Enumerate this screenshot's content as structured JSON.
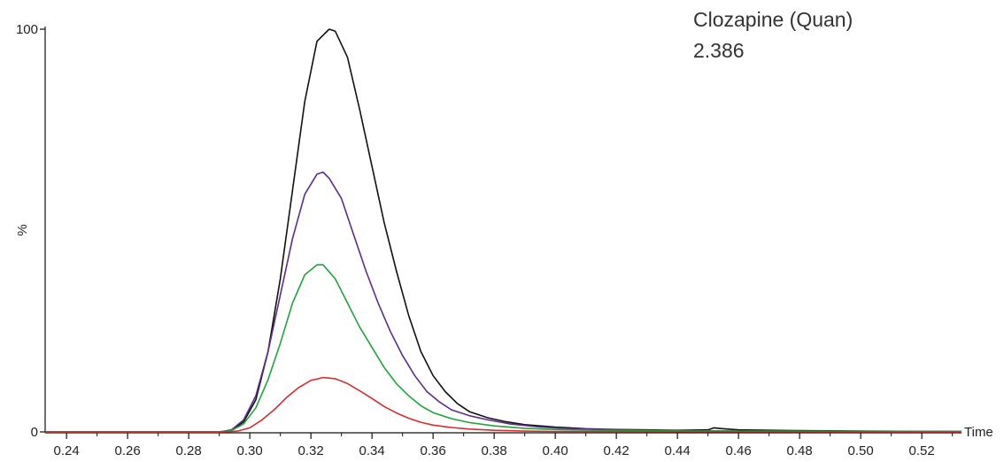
{
  "chart_data": {
    "type": "line",
    "title": "Clozapine (Quan)",
    "subtitle": "2.386",
    "xlabel": "Time",
    "ylabel": "%",
    "xlim": [
      0.233,
      0.533
    ],
    "ylim": [
      0,
      100
    ],
    "x_ticks": [
      "0.24",
      "0.26",
      "0.28",
      "0.30",
      "0.32",
      "0.34",
      "0.36",
      "0.38",
      "0.40",
      "0.42",
      "0.44",
      "0.46",
      "0.48",
      "0.50",
      "0.52"
    ],
    "y_ticks": [
      "0",
      "100"
    ],
    "grid": false,
    "series": [
      {
        "color": "#111111",
        "points": [
          [
            0.233,
            0
          ],
          [
            0.29,
            0
          ],
          [
            0.294,
            0.4
          ],
          [
            0.298,
            2.5
          ],
          [
            0.302,
            8
          ],
          [
            0.306,
            20
          ],
          [
            0.31,
            38
          ],
          [
            0.314,
            60
          ],
          [
            0.318,
            82
          ],
          [
            0.322,
            97
          ],
          [
            0.326,
            100
          ],
          [
            0.328,
            99.5
          ],
          [
            0.332,
            93
          ],
          [
            0.336,
            80
          ],
          [
            0.34,
            66
          ],
          [
            0.344,
            52
          ],
          [
            0.348,
            40
          ],
          [
            0.352,
            29
          ],
          [
            0.356,
            20
          ],
          [
            0.36,
            14
          ],
          [
            0.364,
            10
          ],
          [
            0.368,
            7
          ],
          [
            0.372,
            5
          ],
          [
            0.378,
            3.5
          ],
          [
            0.384,
            2.5
          ],
          [
            0.39,
            1.8
          ],
          [
            0.4,
            1.2
          ],
          [
            0.41,
            0.8
          ],
          [
            0.42,
            0.6
          ],
          [
            0.43,
            0.5
          ],
          [
            0.44,
            0.4
          ],
          [
            0.45,
            0.5
          ],
          [
            0.452,
            1
          ],
          [
            0.455,
            0.8
          ],
          [
            0.46,
            0.5
          ],
          [
            0.48,
            0.3
          ],
          [
            0.5,
            0.2
          ],
          [
            0.533,
            0.1
          ]
        ]
      },
      {
        "color": "#5b2d8e",
        "points": [
          [
            0.233,
            0
          ],
          [
            0.29,
            0
          ],
          [
            0.294,
            0.5
          ],
          [
            0.298,
            3
          ],
          [
            0.302,
            9
          ],
          [
            0.306,
            20
          ],
          [
            0.31,
            34
          ],
          [
            0.314,
            48
          ],
          [
            0.318,
            59
          ],
          [
            0.322,
            64
          ],
          [
            0.324,
            64.5
          ],
          [
            0.326,
            63
          ],
          [
            0.33,
            58
          ],
          [
            0.334,
            49
          ],
          [
            0.338,
            40
          ],
          [
            0.342,
            32
          ],
          [
            0.346,
            25
          ],
          [
            0.35,
            19
          ],
          [
            0.354,
            14
          ],
          [
            0.358,
            10
          ],
          [
            0.362,
            7.5
          ],
          [
            0.366,
            5.5
          ],
          [
            0.372,
            4
          ],
          [
            0.378,
            3
          ],
          [
            0.385,
            2
          ],
          [
            0.395,
            1.2
          ],
          [
            0.405,
            0.8
          ],
          [
            0.42,
            0.5
          ],
          [
            0.44,
            0.3
          ],
          [
            0.46,
            0.2
          ],
          [
            0.533,
            0.1
          ]
        ]
      },
      {
        "color": "#21a339",
        "points": [
          [
            0.233,
            0
          ],
          [
            0.29,
            0
          ],
          [
            0.294,
            0.3
          ],
          [
            0.298,
            2
          ],
          [
            0.302,
            6
          ],
          [
            0.306,
            13
          ],
          [
            0.31,
            22
          ],
          [
            0.314,
            32
          ],
          [
            0.318,
            39
          ],
          [
            0.322,
            41.5
          ],
          [
            0.324,
            41.5
          ],
          [
            0.328,
            38
          ],
          [
            0.332,
            32
          ],
          [
            0.336,
            26
          ],
          [
            0.34,
            21
          ],
          [
            0.344,
            16
          ],
          [
            0.348,
            12
          ],
          [
            0.352,
            9
          ],
          [
            0.356,
            6.5
          ],
          [
            0.36,
            4.8
          ],
          [
            0.366,
            3.3
          ],
          [
            0.372,
            2.3
          ],
          [
            0.38,
            1.5
          ],
          [
            0.39,
            0.9
          ],
          [
            0.4,
            0.6
          ],
          [
            0.42,
            0.3
          ],
          [
            0.45,
            0.2
          ],
          [
            0.533,
            0.1
          ]
        ]
      },
      {
        "color": "#d62d2d",
        "points": [
          [
            0.233,
            0
          ],
          [
            0.292,
            0
          ],
          [
            0.296,
            0.2
          ],
          [
            0.3,
            1
          ],
          [
            0.304,
            3
          ],
          [
            0.308,
            5.5
          ],
          [
            0.312,
            8.5
          ],
          [
            0.316,
            11
          ],
          [
            0.32,
            12.8
          ],
          [
            0.324,
            13.5
          ],
          [
            0.328,
            13.2
          ],
          [
            0.332,
            12
          ],
          [
            0.336,
            10.2
          ],
          [
            0.34,
            8.3
          ],
          [
            0.344,
            6.3
          ],
          [
            0.348,
            4.7
          ],
          [
            0.352,
            3.4
          ],
          [
            0.356,
            2.4
          ],
          [
            0.36,
            1.7
          ],
          [
            0.366,
            1.1
          ],
          [
            0.372,
            0.7
          ],
          [
            0.38,
            0.4
          ],
          [
            0.39,
            0.2
          ],
          [
            0.4,
            0.1
          ],
          [
            0.533,
            0
          ]
        ]
      }
    ]
  }
}
